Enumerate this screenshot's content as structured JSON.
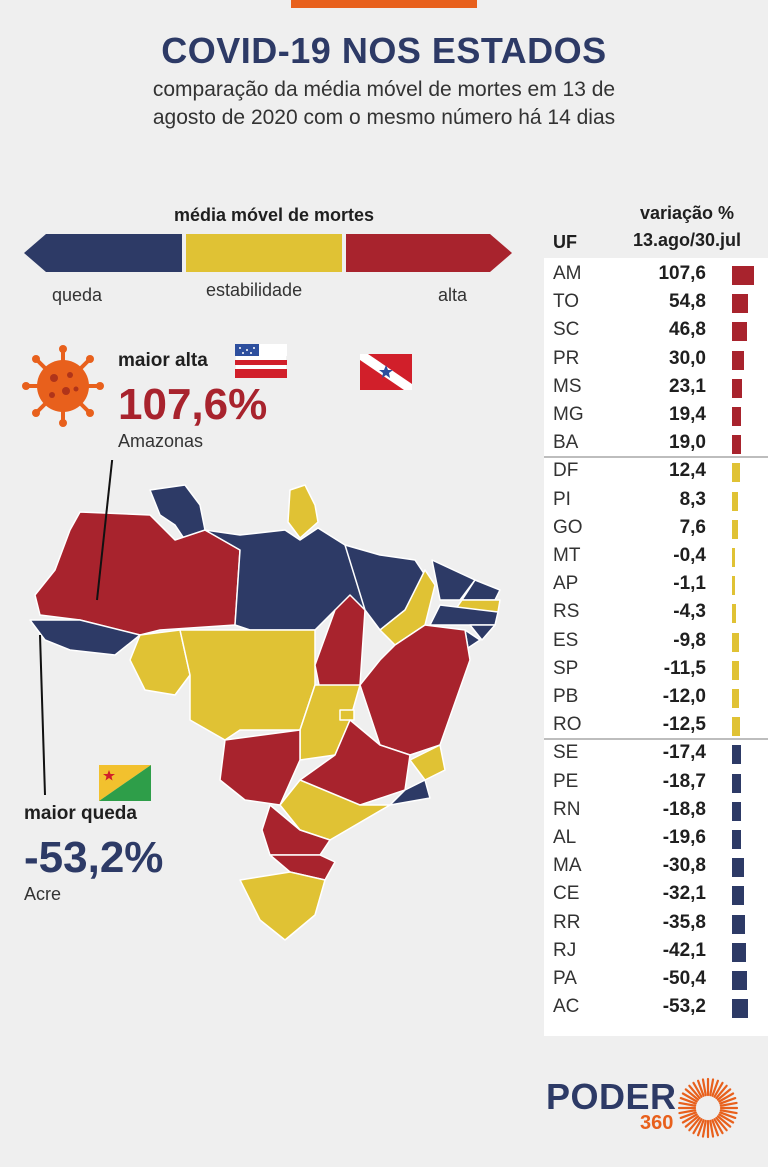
{
  "title": "COVID-19 NOS ESTADOS",
  "subtitle_line1": "comparação da média móvel de mortes em 13 de",
  "subtitle_line2": "agosto de 2020 com o mesmo número há 14 dias",
  "legend": {
    "title": "média móvel de mortes",
    "queda": "queda",
    "estabilidade": "estabilidade",
    "alta": "alta"
  },
  "highlight_high": {
    "label": "maior alta",
    "value": "107,6%",
    "state": "Amazonas"
  },
  "highlight_low": {
    "label": "maior queda",
    "value": "-53,2%",
    "state": "Acre"
  },
  "table": {
    "col_uf": "UF",
    "col_var_line1": "variação %",
    "col_var_line2": "13.ago/30.jul"
  },
  "colors": {
    "alta": "#a8232d",
    "estabilidade": "#e0c234",
    "queda": "#2d3a66",
    "accent": "#e8601c"
  },
  "logo": {
    "name": "PODER",
    "number": "360"
  },
  "chart_data": {
    "type": "bar",
    "orientation": "horizontal",
    "categories": [
      "AM",
      "TO",
      "SC",
      "PR",
      "MS",
      "MG",
      "BA",
      "DF",
      "PI",
      "GO",
      "MT",
      "AP",
      "RS",
      "ES",
      "SP",
      "PB",
      "RO",
      "SE",
      "PE",
      "RN",
      "AL",
      "MA",
      "CE",
      "RR",
      "RJ",
      "PA",
      "AC"
    ],
    "values": [
      107.6,
      54.8,
      46.8,
      30.0,
      23.1,
      19.4,
      19.0,
      12.4,
      8.3,
      7.6,
      -0.4,
      -1.1,
      -4.3,
      -9.8,
      -11.5,
      -12.0,
      -12.5,
      -17.4,
      -18.7,
      -18.8,
      -19.6,
      -30.8,
      -32.1,
      -35.8,
      -42.1,
      -50.4,
      -53.2
    ],
    "labels": [
      "107,6",
      "54,8",
      "46,8",
      "30,0",
      "23,1",
      "19,4",
      "19,0",
      "12,4",
      "8,3",
      "7,6",
      "-0,4",
      "-1,1",
      "-4,3",
      "-9,8",
      "-11,5",
      "-12,0",
      "-12,5",
      "-17,4",
      "-18,7",
      "-18,8",
      "-19,6",
      "-30,8",
      "-32,1",
      "-35,8",
      "-42,1",
      "-50,4",
      "-53,2"
    ],
    "groups": [
      "alta",
      "alta",
      "alta",
      "alta",
      "alta",
      "alta",
      "alta",
      "estabilidade",
      "estabilidade",
      "estabilidade",
      "estabilidade",
      "estabilidade",
      "estabilidade",
      "estabilidade",
      "estabilidade",
      "estabilidade",
      "estabilidade",
      "queda",
      "queda",
      "queda",
      "queda",
      "queda",
      "queda",
      "queda",
      "queda",
      "queda",
      "queda"
    ]
  }
}
